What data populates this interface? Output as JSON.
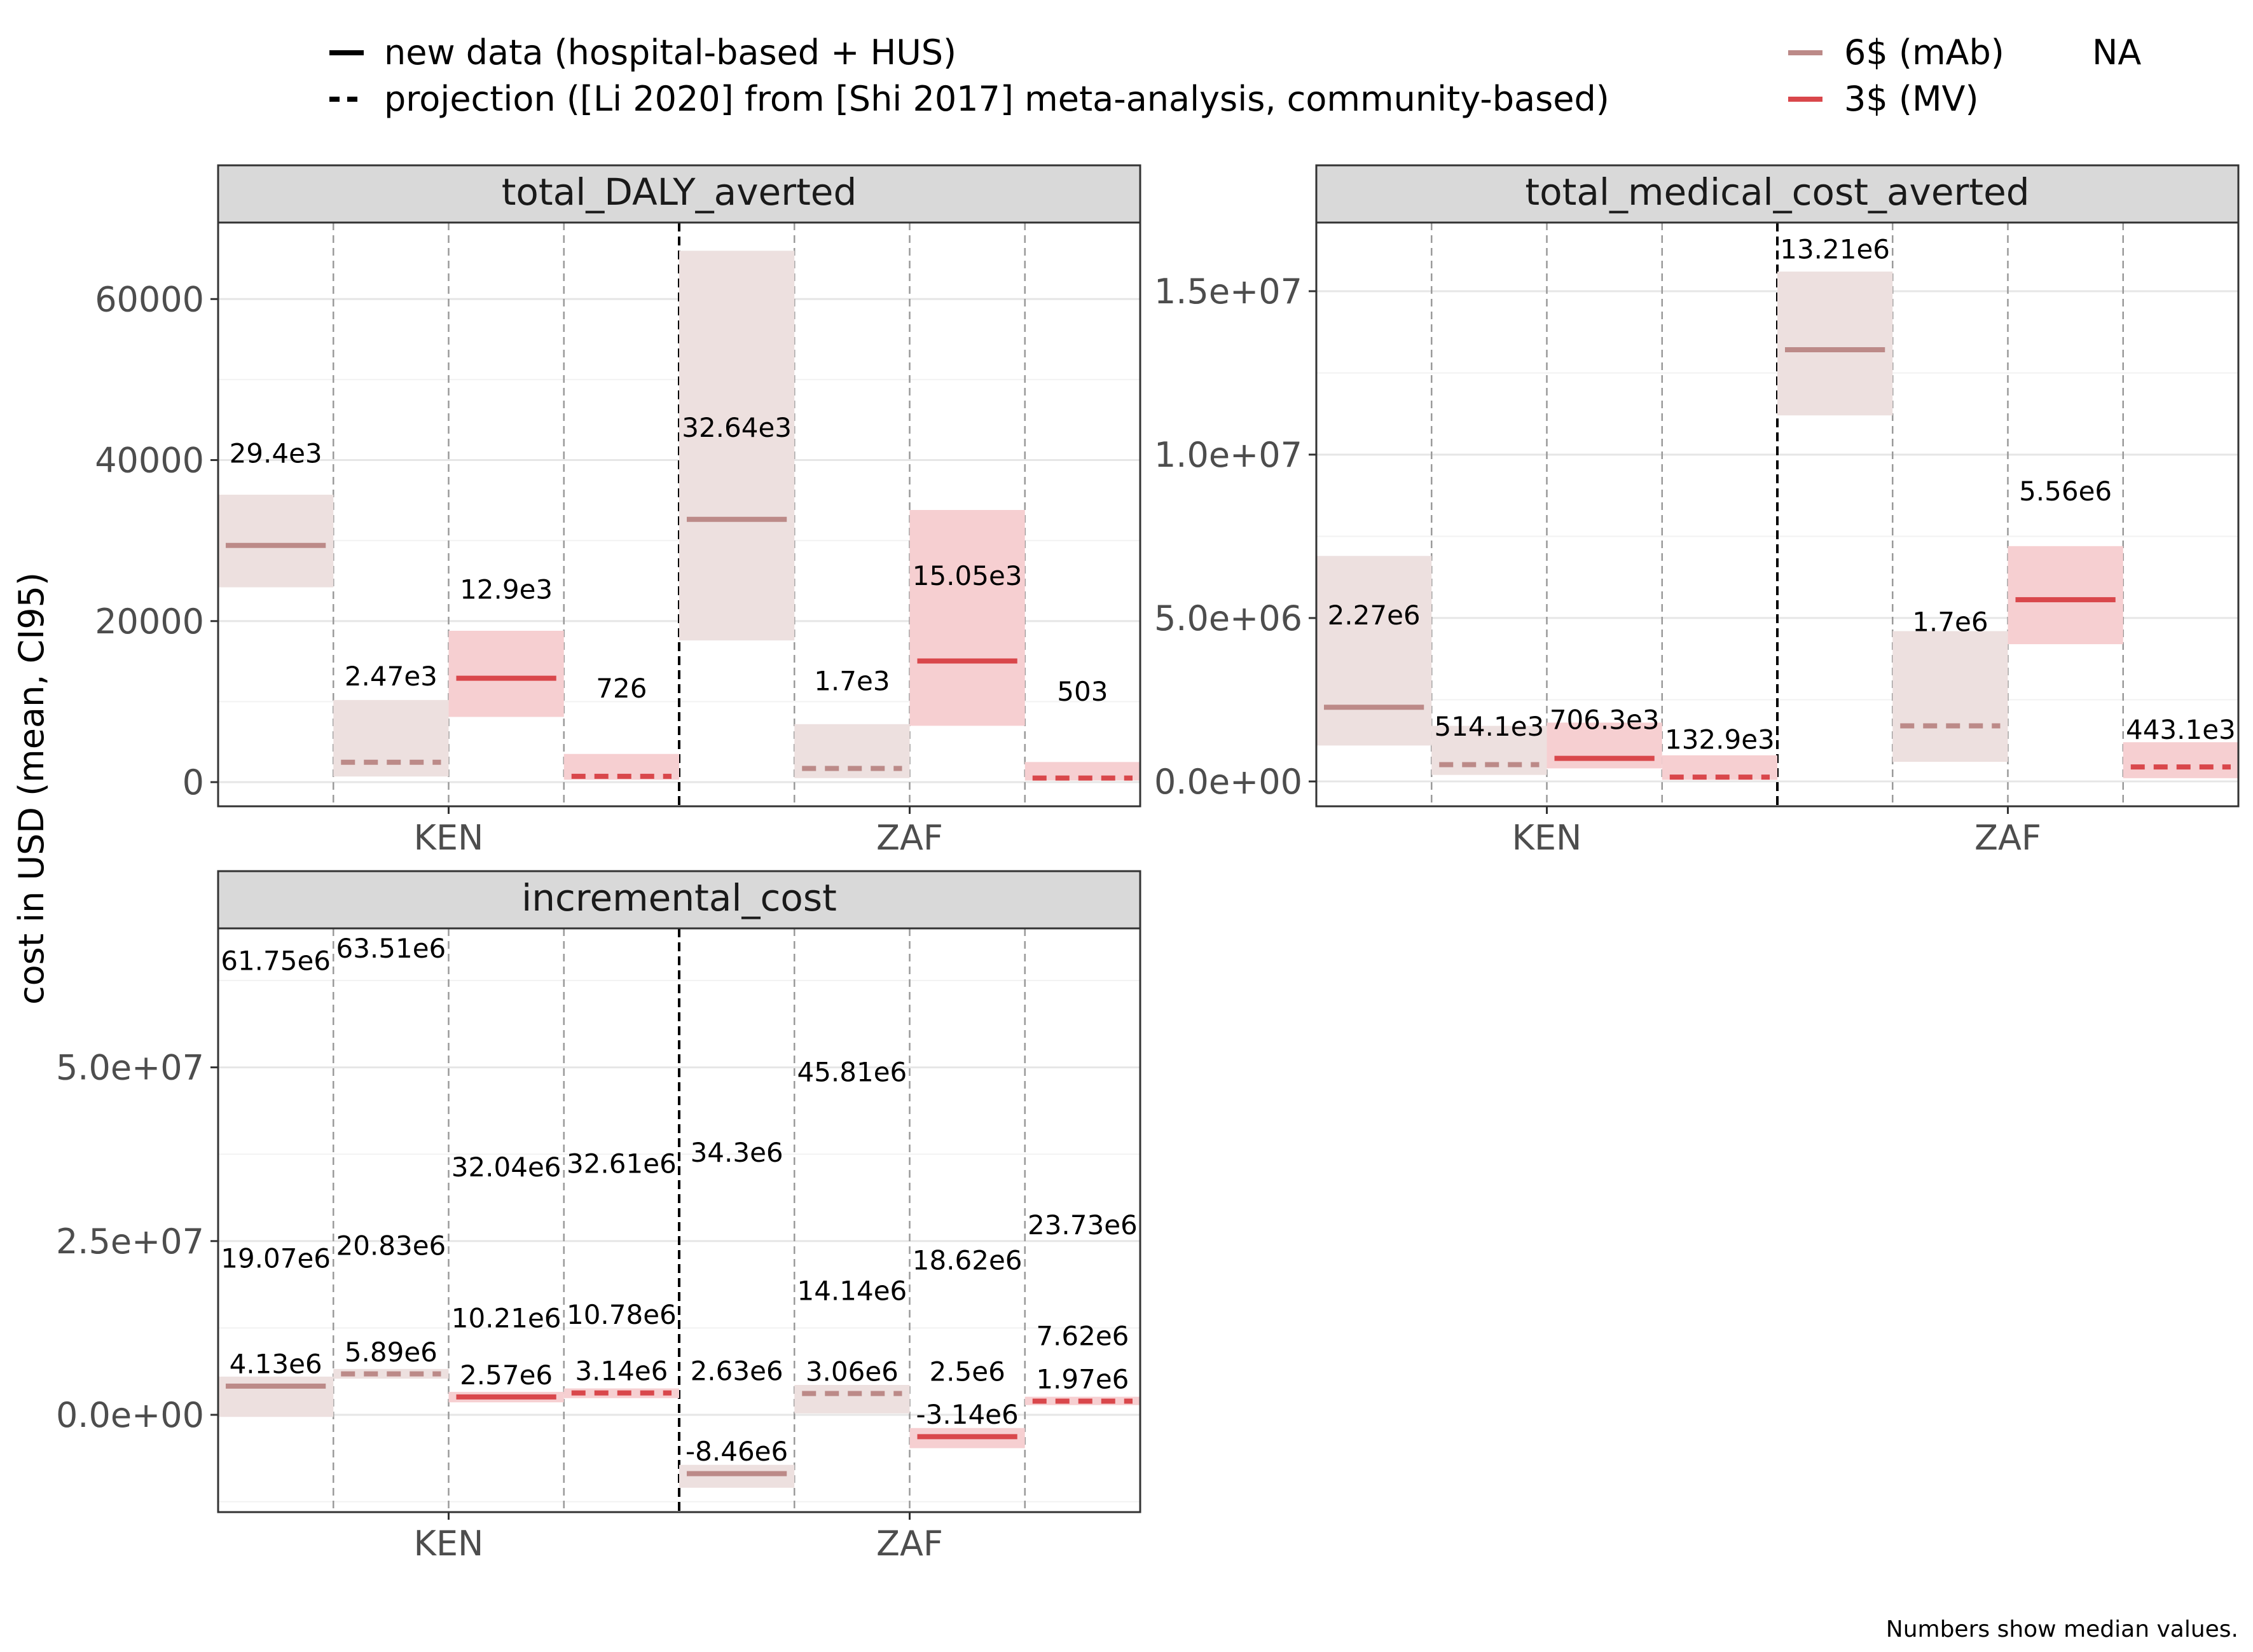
{
  "legend": {
    "linetype": [
      {
        "label": "new data (hospital-based + HUS)",
        "dash": "solid"
      },
      {
        "label": "projection ([Li 2020] from [Shi 2017] meta-analysis, community-based)",
        "dash": "dashed"
      }
    ],
    "colour": [
      {
        "label": "6$ (mAb)",
        "color": "#bc8a88"
      },
      {
        "label": "3$ (MV)",
        "color": "#d9474b"
      }
    ],
    "na_label": "NA"
  },
  "y_axis_title": "cost in USD (mean, CI95)",
  "caption": "Numbers show median values.",
  "colors": {
    "mab_line": "#bc8a88",
    "mab_band": "#ede0df",
    "mv_line": "#d9474b",
    "mv_band": "#f6cfd1",
    "strip_bg": "#d9d9d9",
    "grid_major": "#e6e6e6",
    "grid_minor": "#f2f2f2"
  },
  "chart_data": [
    {
      "type": "crossbar",
      "title": "total_DALY_averted",
      "x_categories": [
        "KEN",
        "ZAF"
      ],
      "group_order": [
        "mAb new data",
        "mAb projection",
        "MV new data",
        "MV projection"
      ],
      "y_ticks": [
        0,
        20000,
        40000,
        60000
      ],
      "y_tick_labels": [
        "0",
        "20000",
        "40000",
        "60000"
      ],
      "ylim": [
        -3000,
        69500
      ],
      "bars": [
        {
          "country": "KEN",
          "group": "mAb new data",
          "mean": 29400,
          "low": 24200,
          "high": 35700,
          "label": "29.4e3",
          "label_y": 39700
        },
        {
          "country": "KEN",
          "group": "mAb projection",
          "mean": 2470,
          "low": 700,
          "high": 10200,
          "label": "2.47e3",
          "label_y": 12000
        },
        {
          "country": "KEN",
          "group": "MV new data",
          "mean": 12900,
          "low": 8100,
          "high": 18800,
          "label": "12.9e3",
          "label_y": 22800
        },
        {
          "country": "KEN",
          "group": "MV projection",
          "mean": 726,
          "low": 300,
          "high": 3500,
          "label": "726",
          "label_y": 10500
        },
        {
          "country": "ZAF",
          "group": "mAb new data",
          "mean": 32640,
          "low": 17600,
          "high": 66000,
          "label": "32.64e3",
          "label_y": 42900
        },
        {
          "country": "ZAF",
          "group": "mAb projection",
          "mean": 1700,
          "low": 500,
          "high": 7200,
          "label": "1.7e3",
          "label_y": 11400
        },
        {
          "country": "ZAF",
          "group": "MV new data",
          "mean": 15050,
          "low": 7000,
          "high": 33800,
          "label": "15.05e3",
          "label_y": 24500
        },
        {
          "country": "ZAF",
          "group": "MV projection",
          "mean": 503,
          "low": 200,
          "high": 2500,
          "label": "503",
          "label_y": 10100
        }
      ]
    },
    {
      "type": "crossbar",
      "title": "total_medical_cost_averted",
      "x_categories": [
        "KEN",
        "ZAF"
      ],
      "group_order": [
        "mAb new data",
        "mAb projection",
        "MV new data",
        "MV projection"
      ],
      "y_ticks": [
        0,
        5000000,
        10000000,
        15000000
      ],
      "y_tick_labels": [
        "0.0e+00",
        "5.0e+06",
        "1.0e+07",
        "1.5e+07"
      ],
      "ylim": [
        -760000,
        17100000
      ],
      "bars": [
        {
          "country": "KEN",
          "group": "mAb new data",
          "mean": 2270000,
          "low": 1100000,
          "high": 6900000,
          "label": "2.27e6",
          "label_y": 4800000
        },
        {
          "country": "KEN",
          "group": "mAb projection",
          "mean": 514100,
          "low": 200000,
          "high": 1700000,
          "label": "514.1e3",
          "label_y": 1400000
        },
        {
          "country": "KEN",
          "group": "MV new data",
          "mean": 706300,
          "low": 400000,
          "high": 1800000,
          "label": "706.3e3",
          "label_y": 1600000
        },
        {
          "country": "KEN",
          "group": "MV projection",
          "mean": 132900,
          "low": 50000,
          "high": 800000,
          "label": "132.9e3",
          "label_y": 1000000
        },
        {
          "country": "ZAF",
          "group": "mAb new data",
          "mean": 13210000,
          "low": 11200000,
          "high": 15600000,
          "label": "13.21e6",
          "label_y": 16000000
        },
        {
          "country": "ZAF",
          "group": "mAb projection",
          "mean": 1700000,
          "low": 600000,
          "high": 4600000,
          "label": "1.7e6",
          "label_y": 4600000
        },
        {
          "country": "ZAF",
          "group": "MV new data",
          "mean": 5560000,
          "low": 4200000,
          "high": 7200000,
          "label": "5.56e6",
          "label_y": 8600000
        },
        {
          "country": "ZAF",
          "group": "MV projection",
          "mean": 443100,
          "low": 100000,
          "high": 1200000,
          "label": "443.1e3",
          "label_y": 1300000
        }
      ]
    },
    {
      "type": "crossbar",
      "title": "incremental_cost",
      "x_categories": [
        "KEN",
        "ZAF"
      ],
      "group_order": [
        "mAb new data",
        "mAb projection",
        "MV new data",
        "MV projection"
      ],
      "y_ticks": [
        0,
        25000000,
        50000000
      ],
      "y_tick_labels": [
        "0.0e+00",
        "2.5e+07",
        "5.0e+07"
      ],
      "ylim": [
        -14000000,
        70000000
      ],
      "bars": [
        {
          "country": "KEN",
          "group": "mAb new data",
          "mean": 4130000,
          "low": -300000,
          "high": 5500000,
          "label": "4.13e6",
          "label_y": 6000000
        },
        {
          "country": "KEN",
          "group": "mAb projection",
          "mean": 5890000,
          "low": 5200000,
          "high": 6600000,
          "label": "5.89e6",
          "label_y": 7700000
        },
        {
          "country": "KEN",
          "group": "MV new data",
          "mean": 2570000,
          "low": 1800000,
          "high": 3300000,
          "label": "2.57e6",
          "label_y": 4400000
        },
        {
          "country": "KEN",
          "group": "MV projection",
          "mean": 3140000,
          "low": 2400000,
          "high": 3800000,
          "label": "3.14e6",
          "label_y": 5000000
        },
        {
          "country": "ZAF",
          "group": "mAb new data",
          "mean": -8460000,
          "low": -10500000,
          "high": -7200000,
          "label": "-8.46e6",
          "label_y": -6600000
        },
        {
          "country": "ZAF",
          "group": "mAb projection",
          "mean": 3060000,
          "low": 200000,
          "high": 4300000,
          "label": "3.06e6",
          "label_y": 4900000
        },
        {
          "country": "ZAF",
          "group": "MV new data",
          "mean": -3140000,
          "low": -4800000,
          "high": -1900000,
          "label": "-3.14e6",
          "label_y": -1300000
        },
        {
          "country": "ZAF",
          "group": "MV projection",
          "mean": 1970000,
          "low": 1400000,
          "high": 2600000,
          "label": "1.97e6",
          "label_y": 3800000
        }
      ],
      "extra_labels": [
        {
          "country": "KEN",
          "group": "mAb new data",
          "label": "61.75e6",
          "value": 64000000
        },
        {
          "country": "KEN",
          "group": "mAb new data",
          "label": "19.07e6",
          "value": 21200000
        },
        {
          "country": "KEN",
          "group": "mAb projection",
          "label": "63.51e6",
          "value": 65800000
        },
        {
          "country": "KEN",
          "group": "mAb projection",
          "label": "20.83e6",
          "value": 23000000
        },
        {
          "country": "KEN",
          "group": "MV new data",
          "label": "32.04e6",
          "value": 34300000
        },
        {
          "country": "KEN",
          "group": "MV new data",
          "label": "10.21e6",
          "value": 12600000
        },
        {
          "country": "KEN",
          "group": "MV projection",
          "label": "32.61e6",
          "value": 34800000
        },
        {
          "country": "KEN",
          "group": "MV projection",
          "label": "10.78e6",
          "value": 13100000
        },
        {
          "country": "ZAF",
          "group": "mAb new data",
          "label": "34.3e6",
          "value": 36400000
        },
        {
          "country": "ZAF",
          "group": "mAb new data",
          "label": "2.63e6",
          "value": 5000000
        },
        {
          "country": "ZAF",
          "group": "mAb projection",
          "label": "45.81e6",
          "value": 48000000
        },
        {
          "country": "ZAF",
          "group": "mAb projection",
          "label": "14.14e6",
          "value": 16500000
        },
        {
          "country": "ZAF",
          "group": "MV new data",
          "label": "18.62e6",
          "value": 20900000
        },
        {
          "country": "ZAF",
          "group": "MV new data",
          "label": "2.5e6",
          "value": 4900000
        },
        {
          "country": "ZAF",
          "group": "MV projection",
          "label": "23.73e6",
          "value": 26000000
        },
        {
          "country": "ZAF",
          "group": "MV projection",
          "label": "7.62e6",
          "value": 10000000
        }
      ]
    }
  ]
}
